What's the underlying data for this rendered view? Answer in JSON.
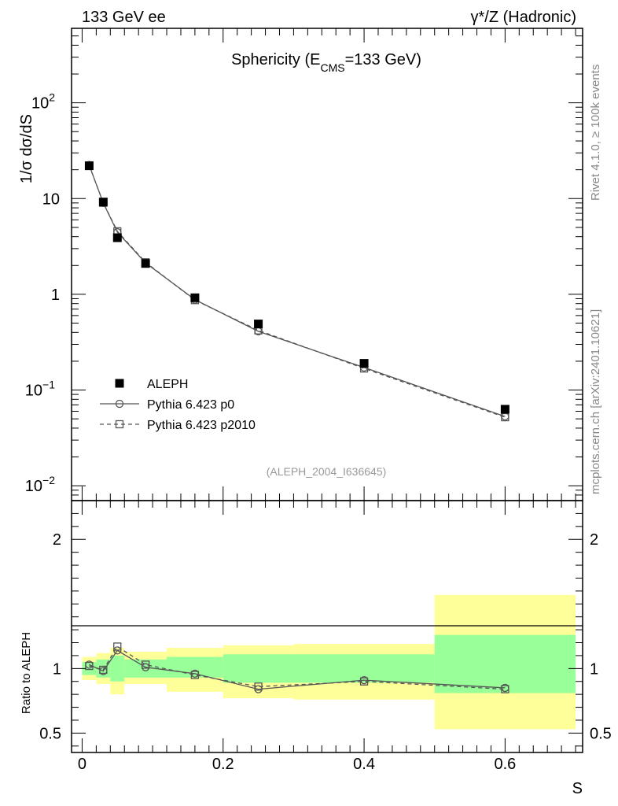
{
  "header": {
    "left": "133 GeV ee",
    "right": "γ*/Z (Hadronic)"
  },
  "side_labels": {
    "top": "Rivet 4.1.0, ≥ 100k events",
    "bottom": "mcplots.cern.ch [arXiv:2401.10621]"
  },
  "chart_data": [
    {
      "type": "scatter",
      "panel": "main",
      "title": "Sphericity (E_CMS=133 GeV)",
      "title_parts": {
        "prefix": "Sphericity (E",
        "sub": "CMS",
        "suffix": "=133 GeV)"
      },
      "ylabel": "1/σ  dσ/dS",
      "yscale": "log",
      "ylim": [
        0.007,
        600
      ],
      "xlim": [
        -0.015,
        0.71
      ],
      "y_ticks": [
        {
          "value": 0.01,
          "base": "10",
          "exp": "−2"
        },
        {
          "value": 0.1,
          "base": "10",
          "exp": "−1"
        },
        {
          "value": 1,
          "base": "1",
          "exp": ""
        },
        {
          "value": 10,
          "base": "10",
          "exp": ""
        },
        {
          "value": 100,
          "base": "10",
          "exp": "2"
        }
      ],
      "annotation": "(ALEPH_2004_I636645)",
      "legend": {
        "position": "bottom-left",
        "entries": [
          "ALEPH",
          "Pythia 6.423 p0",
          "Pythia 6.423 p2010"
        ]
      },
      "series": [
        {
          "name": "ALEPH",
          "style": "filled-square",
          "color": "#000000",
          "x": [
            0.01,
            0.03,
            0.05,
            0.09,
            0.16,
            0.25,
            0.4,
            0.6
          ],
          "y": [
            22.0,
            9.2,
            3.9,
            2.1,
            0.92,
            0.49,
            0.19,
            0.063
          ]
        },
        {
          "name": "Pythia 6.423 p0",
          "style": "open-circle-solid",
          "color": "#555555",
          "x": [
            0.01,
            0.03,
            0.05,
            0.09,
            0.16,
            0.25,
            0.4,
            0.6
          ],
          "y": [
            22.4,
            9.0,
            4.45,
            2.13,
            0.88,
            0.41,
            0.172,
            0.053
          ]
        },
        {
          "name": "Pythia 6.423 p2010",
          "style": "open-square-dashed",
          "color": "#555555",
          "x": [
            0.01,
            0.03,
            0.05,
            0.09,
            0.16,
            0.25,
            0.4,
            0.6
          ],
          "y": [
            22.2,
            9.05,
            4.55,
            2.16,
            0.87,
            0.42,
            0.168,
            0.052
          ]
        }
      ]
    },
    {
      "type": "scatter",
      "panel": "ratio",
      "ylabel": "Ratio to ALEPH",
      "xlabel": "S",
      "yscale": "linear",
      "ylim": [
        0.35,
        2.3
      ],
      "xlim": [
        -0.015,
        0.71
      ],
      "y_ticks": [
        0.5,
        1,
        2
      ],
      "x_ticks": [
        0,
        0.2,
        0.4,
        0.6
      ],
      "x_tick_labels": [
        "0",
        "0.2",
        "0.4",
        "0.6"
      ],
      "y_tick_labels": [
        "0.5",
        "1",
        "2"
      ],
      "bins": [
        {
          "xlo": 0.0,
          "xhi": 0.02,
          "inner": [
            0.95,
            1.05
          ],
          "outer": [
            0.91,
            1.09
          ]
        },
        {
          "xlo": 0.02,
          "xhi": 0.04,
          "inner": [
            0.93,
            1.07
          ],
          "outer": [
            0.88,
            1.12
          ]
        },
        {
          "xlo": 0.04,
          "xhi": 0.06,
          "inner": [
            0.9,
            1.1
          ],
          "outer": [
            0.8,
            1.16
          ]
        },
        {
          "xlo": 0.06,
          "xhi": 0.12,
          "inner": [
            0.93,
            1.07
          ],
          "outer": [
            0.88,
            1.13
          ]
        },
        {
          "xlo": 0.12,
          "xhi": 0.2,
          "inner": [
            0.93,
            1.09
          ],
          "outer": [
            0.82,
            1.16
          ]
        },
        {
          "xlo": 0.2,
          "xhi": 0.3,
          "inner": [
            0.89,
            1.11
          ],
          "outer": [
            0.77,
            1.18
          ]
        },
        {
          "xlo": 0.3,
          "xhi": 0.5,
          "inner": [
            0.89,
            1.11
          ],
          "outer": [
            0.76,
            1.19
          ]
        },
        {
          "xlo": 0.5,
          "xhi": 0.7,
          "inner": [
            0.81,
            1.26
          ],
          "outer": [
            0.53,
            1.57
          ]
        }
      ],
      "band_colors": {
        "inner": "#99ff99",
        "outer": "#ffff99"
      },
      "series": [
        {
          "name": "Pythia 6.423 p0",
          "style": "open-circle-solid",
          "color": "#555555",
          "x": [
            0.01,
            0.03,
            0.05,
            0.09,
            0.16,
            0.25,
            0.4,
            0.6
          ],
          "y": [
            1.03,
            0.98,
            1.14,
            1.01,
            0.96,
            0.84,
            0.91,
            0.85
          ]
        },
        {
          "name": "Pythia 6.423 p2010",
          "style": "open-square-dashed",
          "color": "#555555",
          "x": [
            0.01,
            0.03,
            0.05,
            0.09,
            0.16,
            0.25,
            0.4,
            0.6
          ],
          "y": [
            1.02,
            0.99,
            1.17,
            1.03,
            0.95,
            0.86,
            0.9,
            0.84
          ]
        }
      ]
    }
  ]
}
